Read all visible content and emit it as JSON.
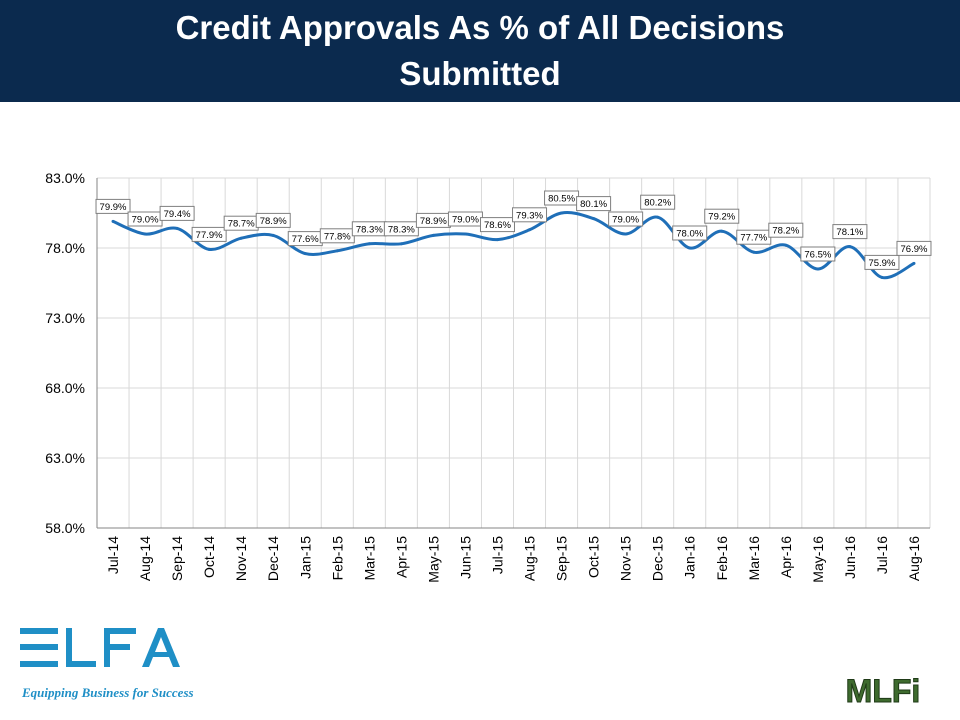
{
  "header": {
    "title": "Credit Approvals As % of All Decisions Submitted"
  },
  "brand": {
    "left_logo_text": "ELFA",
    "tagline": "Equipping Business for Success",
    "right_logo_text": "MLFi"
  },
  "colors": {
    "header_bg": "#0b2a4e",
    "series_line": "#1f6fb8",
    "elfa_blue": "#1f8fc6",
    "mlfi_green": "#3e6b2e"
  },
  "chart_data": {
    "type": "line",
    "title": "Credit Approvals As % of All Decisions Submitted",
    "xlabel": "",
    "ylabel": "",
    "ylim": [
      58.0,
      83.0
    ],
    "yticks": [
      "58.0%",
      "63.0%",
      "68.0%",
      "73.0%",
      "78.0%",
      "83.0%"
    ],
    "grid": true,
    "legend": "none",
    "categories": [
      "Jul-14",
      "Aug-14",
      "Sep-14",
      "Oct-14",
      "Nov-14",
      "Dec-14",
      "Jan-15",
      "Feb-15",
      "Mar-15",
      "Apr-15",
      "May-15",
      "Jun-15",
      "Jul-15",
      "Aug-15",
      "Sep-15",
      "Oct-15",
      "Nov-15",
      "Dec-15",
      "Jan-16",
      "Feb-16",
      "Mar-16",
      "Apr-16",
      "May-16",
      "Jun-16",
      "Jul-16",
      "Aug-16"
    ],
    "values": [
      79.9,
      79.0,
      79.4,
      77.9,
      78.7,
      78.9,
      77.6,
      77.8,
      78.3,
      78.3,
      78.9,
      79.0,
      78.6,
      79.3,
      80.5,
      80.1,
      79.0,
      80.2,
      78.0,
      79.2,
      77.7,
      78.2,
      76.5,
      78.1,
      75.9,
      76.9
    ],
    "data_labels": [
      "79.9%",
      "79.0%",
      "79.4%",
      "77.9%",
      "78.7%",
      "78.9%",
      "77.6%",
      "77.8%",
      "78.3%",
      "78.3%",
      "78.9%",
      "79.0%",
      "78.6%",
      "79.3%",
      "80.5%",
      "80.1%",
      "79.0%",
      "80.2%",
      "78.0%",
      "79.2%",
      "77.7%",
      "78.2%",
      "76.5%",
      "78.1%",
      "75.9%",
      "76.9%"
    ]
  }
}
